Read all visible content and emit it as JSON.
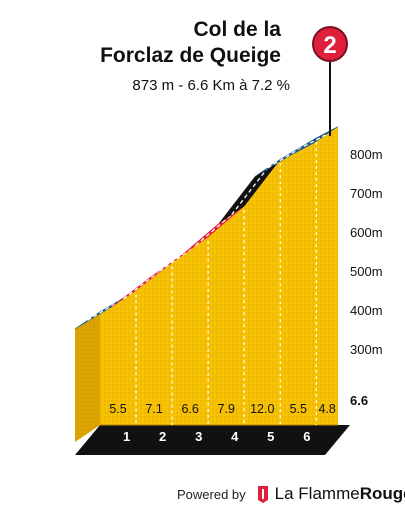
{
  "climb": {
    "title_line1": "Col de la",
    "title_line2": "Forclaz de Queige",
    "summary": "873 m - 6.6 Km à 7.2 %",
    "badge_number": "2"
  },
  "chart_data": {
    "type": "area",
    "title": "Col de la Forclaz de Queige",
    "subtitle": "873 m - 6.6 Km à 7.2 %",
    "x_unit": "km",
    "y_unit": "m",
    "xlim": [
      0,
      6.6
    ],
    "ylim": [
      150,
      900
    ],
    "y_ticks": [
      "300m",
      "400m",
      "500m",
      "600m",
      "700m",
      "800m"
    ],
    "y_tick_values": [
      300,
      400,
      500,
      600,
      700,
      800
    ],
    "km_markers": [
      "1",
      "2",
      "3",
      "4",
      "5",
      "6"
    ],
    "km_marker_values": [
      1,
      2,
      3,
      4,
      5,
      6
    ],
    "end_km_label": "6.6",
    "profile_points": [
      {
        "km": 0,
        "alt": 398
      },
      {
        "km": 1,
        "alt": 453
      },
      {
        "km": 2,
        "alt": 524
      },
      {
        "km": 3,
        "alt": 590
      },
      {
        "km": 4,
        "alt": 669
      },
      {
        "km": 5,
        "alt": 789
      },
      {
        "km": 6,
        "alt": 844
      },
      {
        "km": 6.6,
        "alt": 873
      }
    ],
    "segment_gradients": [
      "5.5",
      "7.1",
      "6.6",
      "7.9",
      "12.0",
      "5.5",
      "4.8"
    ],
    "segment_colors": [
      "#1a5a8c",
      "#e01f3d",
      "#e01f3d",
      "#e01f3d",
      "#111111",
      "#1a5a8c",
      "#1a5a8c"
    ],
    "fill_color": "#f5c000",
    "grid": true
  },
  "footer": {
    "powered_by": "Powered by",
    "brand_part1": "La Flamme",
    "brand_part2": "Rouge"
  }
}
